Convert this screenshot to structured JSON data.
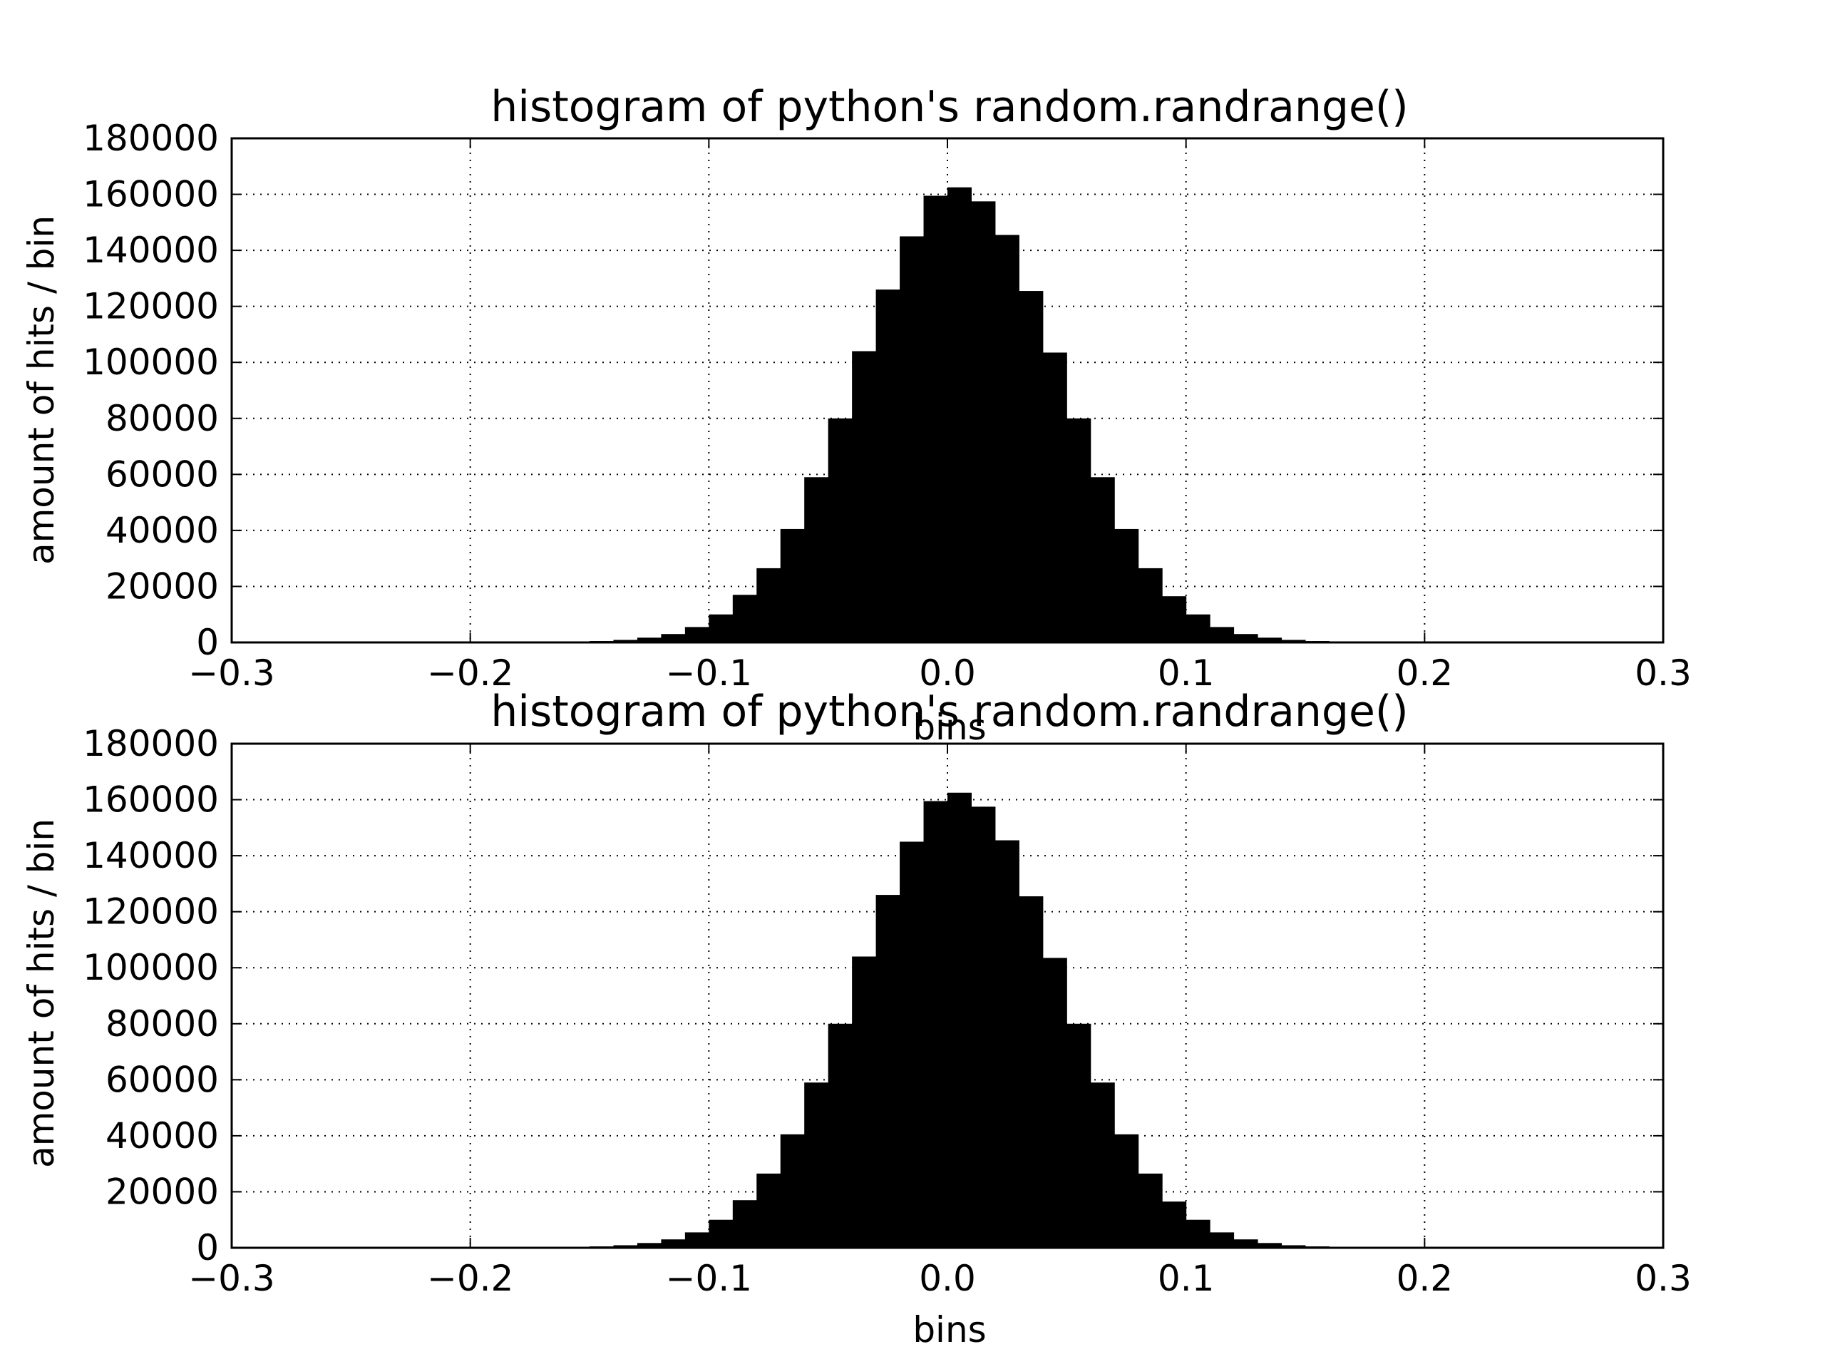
{
  "chart_data": [
    {
      "type": "bar",
      "title": "histogram of python's random.randrange()",
      "xlabel": "bins",
      "ylabel": "amount of hits / bin",
      "xlim": [
        -0.3,
        0.3
      ],
      "ylim": [
        0,
        180000
      ],
      "xticks": [
        "−0.3",
        "−0.2",
        "−0.1",
        "0.0",
        "0.1",
        "0.2",
        "0.3"
      ],
      "yticks": [
        "0",
        "20000",
        "40000",
        "60000",
        "80000",
        "100000",
        "120000",
        "140000",
        "160000",
        "180000"
      ],
      "grid": true,
      "bar_color": "#000000",
      "bin_edges": [
        -0.16,
        -0.15,
        -0.14,
        -0.13,
        -0.12,
        -0.11,
        -0.1,
        -0.09,
        -0.08,
        -0.07,
        -0.06,
        -0.05,
        -0.04,
        -0.03,
        -0.02,
        -0.01,
        0.0,
        0.01,
        0.02,
        0.03,
        0.04,
        0.05,
        0.06,
        0.07,
        0.08,
        0.09,
        0.1,
        0.11,
        0.12,
        0.13,
        0.14,
        0.15,
        0.16,
        0.17
      ],
      "values": [
        300,
        500,
        900,
        1700,
        3000,
        5500,
        10000,
        17000,
        26500,
        40500,
        59000,
        80000,
        104000,
        126000,
        145000,
        159500,
        162500,
        157500,
        145500,
        125500,
        103500,
        80000,
        59000,
        40500,
        26500,
        16500,
        10000,
        5500,
        3000,
        1700,
        900,
        500,
        300
      ]
    },
    {
      "type": "bar",
      "title": "histogram of python's random.randrange()",
      "xlabel": "bins",
      "ylabel": "amount of hits / bin",
      "xlim": [
        -0.3,
        0.3
      ],
      "ylim": [
        0,
        180000
      ],
      "xticks": [
        "−0.3",
        "−0.2",
        "−0.1",
        "0.0",
        "0.1",
        "0.2",
        "0.3"
      ],
      "yticks": [
        "0",
        "20000",
        "40000",
        "60000",
        "80000",
        "100000",
        "120000",
        "140000",
        "160000",
        "180000"
      ],
      "grid": true,
      "bar_color": "#000000",
      "bin_edges": [
        -0.16,
        -0.15,
        -0.14,
        -0.13,
        -0.12,
        -0.11,
        -0.1,
        -0.09,
        -0.08,
        -0.07,
        -0.06,
        -0.05,
        -0.04,
        -0.03,
        -0.02,
        -0.01,
        0.0,
        0.01,
        0.02,
        0.03,
        0.04,
        0.05,
        0.06,
        0.07,
        0.08,
        0.09,
        0.1,
        0.11,
        0.12,
        0.13,
        0.14,
        0.15,
        0.16,
        0.17
      ],
      "values": [
        300,
        500,
        900,
        1700,
        3000,
        5500,
        10000,
        17000,
        26500,
        40500,
        59000,
        80000,
        104000,
        126000,
        145000,
        159500,
        162500,
        157500,
        145500,
        125500,
        103500,
        80000,
        59000,
        40500,
        26500,
        16500,
        10000,
        5500,
        3000,
        1700,
        900,
        500,
        300
      ]
    }
  ]
}
